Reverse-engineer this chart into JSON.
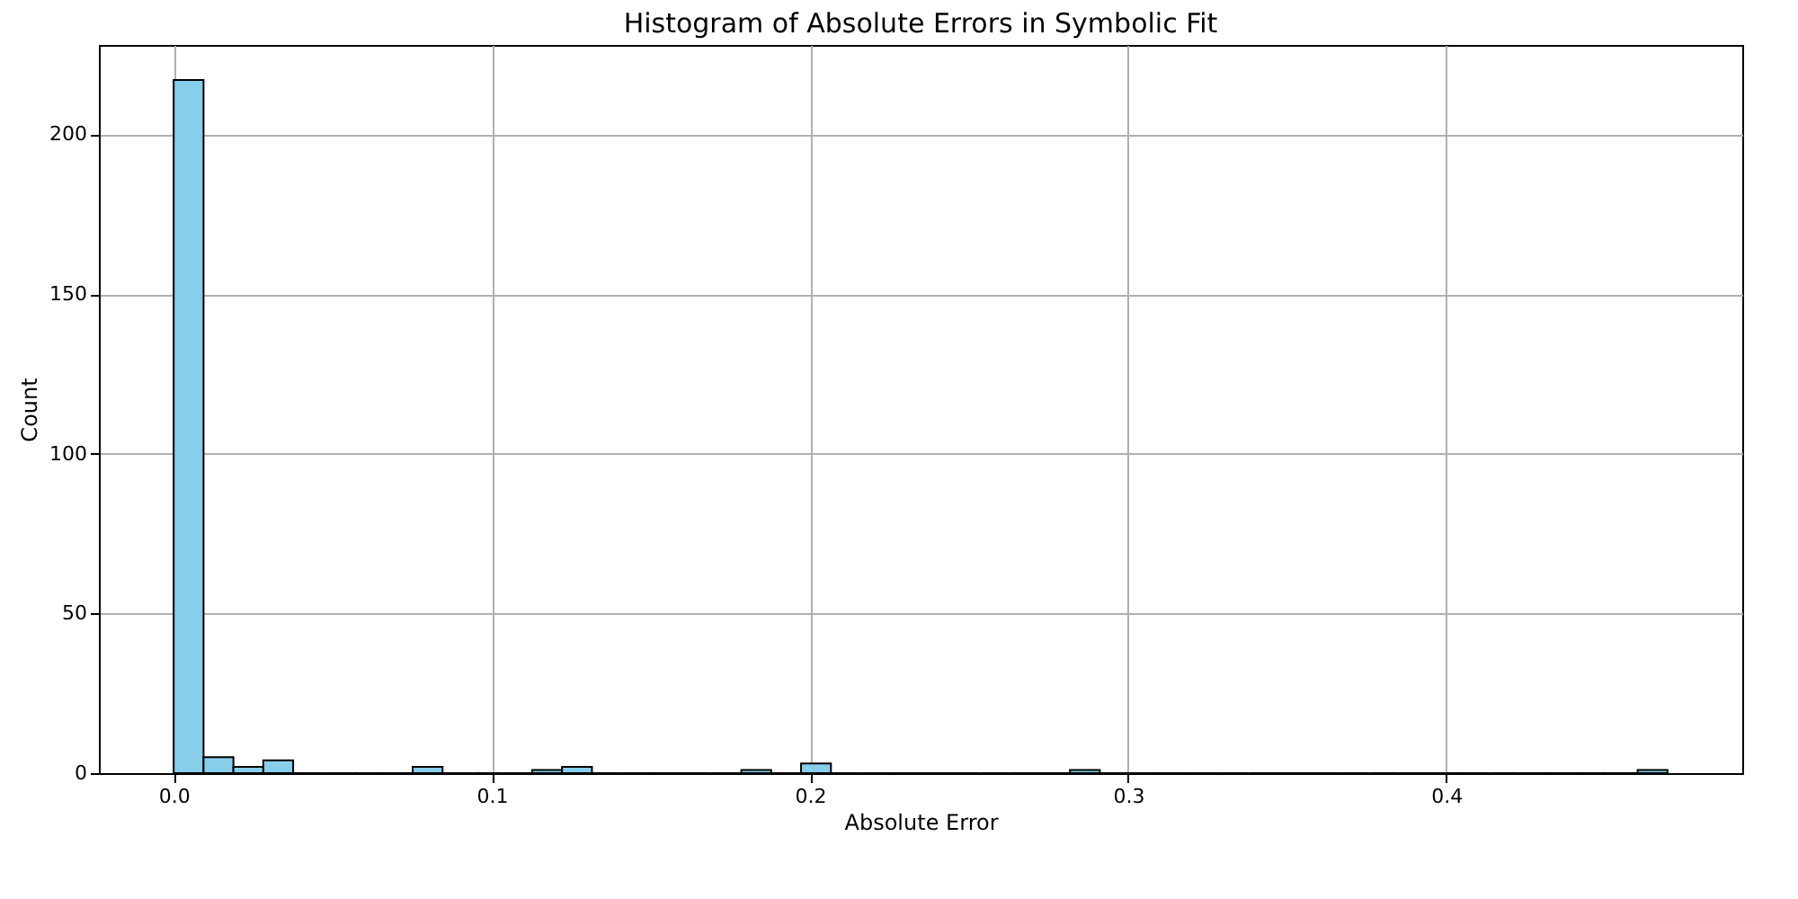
{
  "chart_data": {
    "type": "histogram",
    "title": "Histogram of Absolute Errors in Symbolic Fit",
    "xlabel": "Absolute Error",
    "ylabel": "Count",
    "bins": [
      0,
      0.00939,
      0.01878,
      0.02817,
      0.03756,
      0.04695,
      0.05634,
      0.06573,
      0.07512,
      0.08451,
      0.0939,
      0.10329,
      0.11268,
      0.12207,
      0.13146,
      0.14085,
      0.15024,
      0.15963,
      0.16902,
      0.17841,
      0.1878,
      0.19719,
      0.20658,
      0.21597,
      0.22536,
      0.23475,
      0.24414,
      0.25353,
      0.26292,
      0.27231,
      0.2817,
      0.29109,
      0.30048,
      0.30987,
      0.31926,
      0.32865,
      0.33804,
      0.34743,
      0.35682,
      0.36621,
      0.3756,
      0.38499,
      0.39438,
      0.40377,
      0.41316,
      0.42255,
      0.43194,
      0.44133,
      0.45072,
      0.46011,
      0.4695
    ],
    "values": [
      217,
      5,
      2,
      4,
      0,
      0,
      0,
      0,
      2,
      0,
      0,
      0,
      1,
      2,
      0,
      0,
      0,
      0,
      0,
      1,
      0,
      3,
      0,
      0,
      0,
      0,
      0,
      0,
      0,
      0,
      1,
      0,
      0,
      0,
      0,
      0,
      0,
      0,
      0,
      0,
      0,
      0,
      0,
      0,
      0,
      0,
      0,
      0,
      0,
      1
    ],
    "color": "#87ceeb",
    "xlim": [
      -0.0235,
      0.493
    ],
    "ylim": [
      0,
      228
    ],
    "xticks": [
      {
        "value": 0,
        "label": "0.0"
      },
      0.1,
      0.2,
      0.3,
      0.4
    ],
    "yticks": [
      0,
      50,
      100,
      150,
      200
    ],
    "grid": true
  }
}
